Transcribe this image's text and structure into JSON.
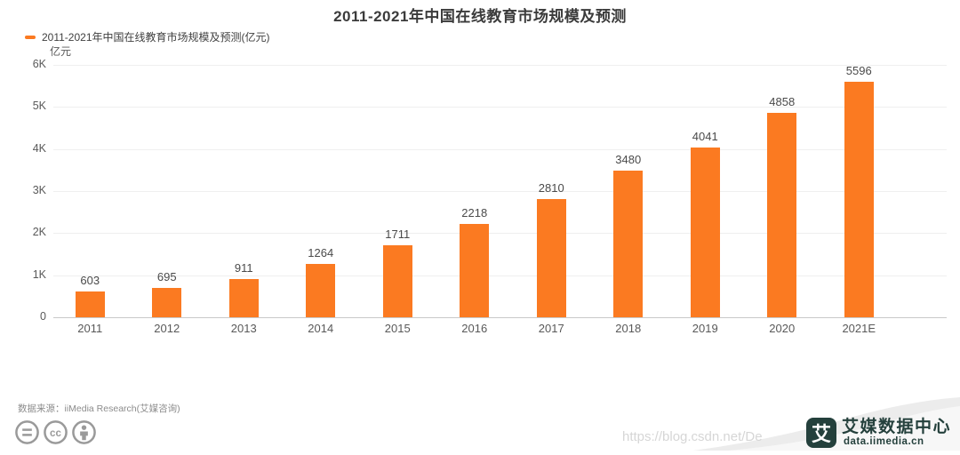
{
  "title": "2011-2021年中国在线教育市场规模及预测",
  "legend": {
    "label": "2011-2021年中国在线教育市场规模及预测(亿元)"
  },
  "chart_data": {
    "type": "bar",
    "title": "2011-2021年中国在线教育市场规模及预测",
    "unit_label": "亿元",
    "categories": [
      "2011",
      "2012",
      "2013",
      "2014",
      "2015",
      "2016",
      "2017",
      "2018",
      "2019",
      "2020",
      "2021E"
    ],
    "values": [
      603,
      695,
      911,
      1264,
      1711,
      2218,
      2810,
      3480,
      4041,
      4858,
      5596
    ],
    "ylim": [
      0,
      6000
    ],
    "ytick_labels": [
      "0",
      "1K",
      "2K",
      "3K",
      "4K",
      "5K",
      "6K"
    ],
    "ytick_values": [
      0,
      1000,
      2000,
      3000,
      4000,
      5000,
      6000
    ],
    "grid": true,
    "legend_position": "top-left",
    "bar_color": "#fb7a21"
  },
  "footer": {
    "source": "数据来源：iiMedia Research(艾媒咨询)",
    "license_icons": [
      "equals-icon",
      "cc-icon",
      "person-icon"
    ]
  },
  "branding": {
    "logo_glyph": "艾",
    "logo_text": "艾媒数据中心",
    "logo_domain": "data.iimedia.cn",
    "logo_color": "#24403c"
  },
  "watermark": "https://blog.csdn.net/De"
}
